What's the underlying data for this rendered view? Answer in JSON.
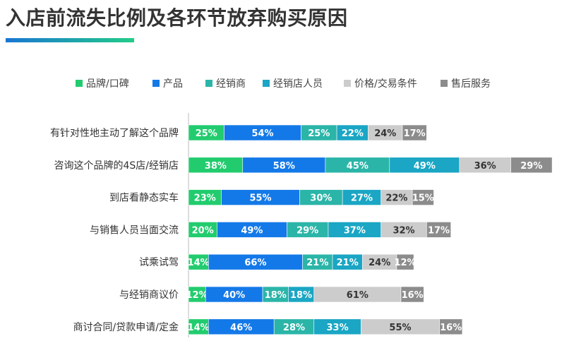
{
  "header": {
    "title": "入店前流失比例及各环节放弃购买原因"
  },
  "chart_data": {
    "type": "bar",
    "stacked": true,
    "orientation": "horizontal",
    "categories": [
      "有针对性地主动了解这个品牌",
      "咨询这个品牌的4S店/经销店",
      "到店看静态实车",
      "与销售人员当面交流",
      "试乘试驾",
      "与经销商议价",
      "商讨合同/贷款申请/定金"
    ],
    "series": [
      {
        "name": "品牌/口碑",
        "color": "#22cc6e",
        "values": [
          25,
          38,
          23,
          20,
          14,
          12,
          14
        ]
      },
      {
        "name": "产品",
        "color": "#1479e8",
        "values": [
          54,
          58,
          55,
          49,
          66,
          40,
          46
        ]
      },
      {
        "name": "经销商",
        "color": "#2bb5a8",
        "values": [
          25,
          45,
          30,
          29,
          21,
          18,
          28
        ]
      },
      {
        "name": "经销店人员",
        "color": "#1aa6c4",
        "values": [
          22,
          49,
          27,
          37,
          21,
          18,
          33
        ]
      },
      {
        "name": "价格/交易条件",
        "color": "#cccccc",
        "values": [
          24,
          36,
          22,
          32,
          24,
          61,
          55
        ]
      },
      {
        "name": "售后服务",
        "color": "#8c8c8c",
        "values": [
          17,
          29,
          15,
          17,
          12,
          16,
          16
        ]
      }
    ],
    "value_suffix": "%",
    "legend": "top",
    "grid": false
  }
}
